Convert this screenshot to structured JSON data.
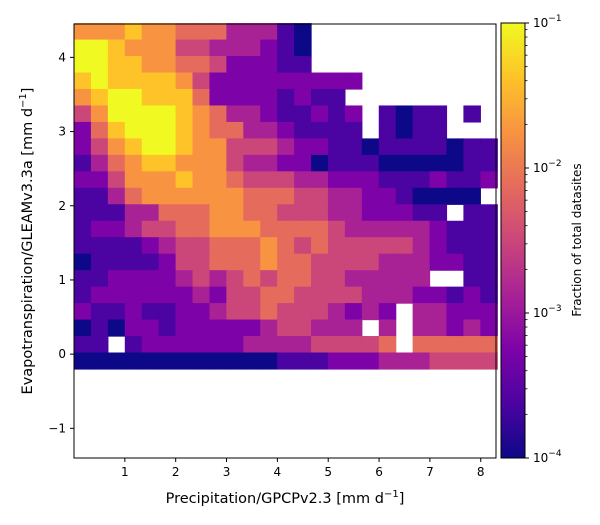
{
  "chart_data": {
    "type": "heatmap",
    "xlabel": "Precipitation/GPCPv2.3 [mm d$^{-1}$]",
    "ylabel": "Evapotranspiration/GLEAMv3.3a [mm d$^{-1}$]",
    "xlim": [
      0.0,
      8.3
    ],
    "ylim": [
      -1.4,
      4.45
    ],
    "xticks": [
      1,
      2,
      3,
      4,
      5,
      6,
      7,
      8
    ],
    "yticks": [
      -1,
      0,
      1,
      2,
      3,
      4
    ],
    "colorbar": {
      "label": "Fraction of total datasites",
      "scale": "log",
      "range": [
        0.0001,
        0.1
      ],
      "ticks": [
        {
          "value": 0.1,
          "base": "10",
          "exp": "−1"
        },
        {
          "value": 0.01,
          "base": "10",
          "exp": "−2"
        },
        {
          "value": 0.001,
          "base": "10",
          "exp": "−3"
        },
        {
          "value": 0.0001,
          "base": "10",
          "exp": "−4"
        }
      ],
      "colormap": "plasma"
    },
    "grid": {
      "x0": 0.0,
      "y0": -0.2,
      "dx": 0.333,
      "dy": 0.222,
      "cols": 25,
      "rows": 21
    },
    "cell_values": [
      "7778776664442100000000000",
      "9987775544432100000000000",
      "9988776653332200000000000",
      "8988887533333333300000000",
      "7899888633332322000000000",
      "5799998764432232302122020",
      "3689998766443222202122000",
      "3578998775554332212222122",
      "2467887775443312221111122",
      "3357778776555443332223223",
      "2246777777666554433211110",
      "2224466677665554433322022",
      "2334556677766665444443222",
      "2222345566676565555543222",
      "1222235566676655554443322",
      "2233334545656655444443322",
      "2333333435566555544433232",
      "3223223345565554343444333",
      "1213323333345544444444343",
      "2202333333444455556666666",
      "1111111111112223334445555"
    ],
    "blank_cells": [
      [
        1,
        19
      ],
      [
        2,
        19
      ],
      [
        3,
        19
      ],
      [
        2,
        17
      ],
      [
        5,
        21
      ],
      [
        5,
        22
      ]
    ]
  }
}
